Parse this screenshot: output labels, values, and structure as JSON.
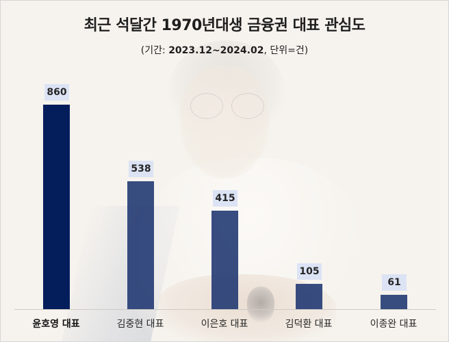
{
  "title": "최근 석달간 1970년대생 금융권 대표 관심도",
  "subtitle": {
    "prefix": "(기간: ",
    "period": "2023.12~2024.02",
    "suffix": ", 단위=건)"
  },
  "colors": {
    "highlight_bar": "#041e5c",
    "bar": "#2e4478",
    "value_label_bg": "#dbe3f4",
    "background": "#f6f3ee"
  },
  "chart_data": {
    "type": "bar",
    "title": "최근 석달간 1970년대생 금융권 대표 관심도",
    "subtitle": "(기간: 2023.12~2024.02, 단위=건)",
    "categories": [
      "윤호영 대표",
      "김중현 대표",
      "이은호 대표",
      "김덕환 대표",
      "이종완 대표"
    ],
    "values": [
      860,
      538,
      415,
      105,
      61
    ],
    "xlabel": "",
    "ylabel": "건",
    "ylim": [
      0,
      860
    ],
    "grid": false,
    "legend": null,
    "data_labels": true,
    "highlight_index": 0
  }
}
